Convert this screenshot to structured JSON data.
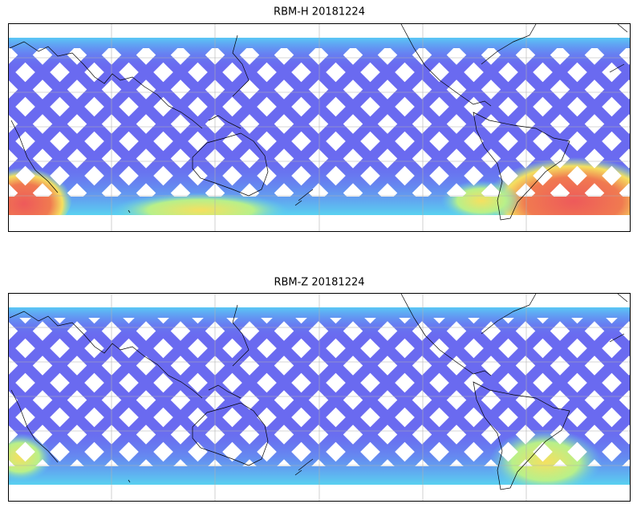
{
  "panels": [
    {
      "title": "RBM-H 20181224"
    },
    {
      "title": "RBM-Z 20181224"
    }
  ]
}
